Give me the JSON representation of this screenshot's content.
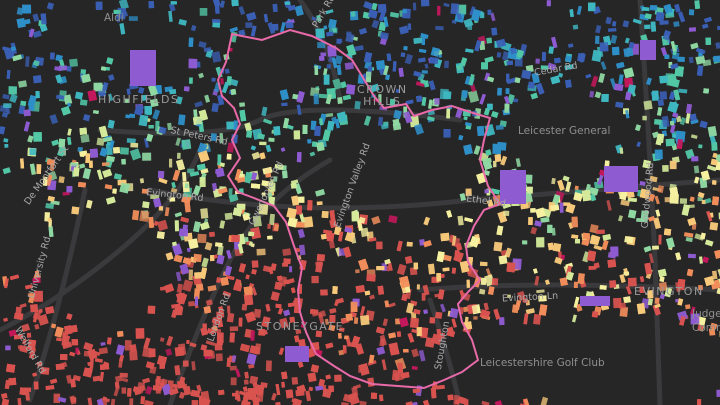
{
  "palette": {
    "background": "#262627",
    "roads": "#3a3a3c",
    "boundary": "#e86aa8",
    "buildings": [
      "#3a5fb4",
      "#2f8fc8",
      "#3fb7c0",
      "#52c7a5",
      "#8fd8a2",
      "#d4ea9a",
      "#f6f1a0",
      "#f7c97a",
      "#f08d5a",
      "#d9534f",
      "#c2185b",
      "#8e5bd1"
    ]
  },
  "labels": {
    "aldi": "Aldi",
    "highfields": "HIGHFIELDS",
    "crown_hills": "CROWN\nHILLS",
    "leicester_general": "Leicester General",
    "evington": "EVINGTON",
    "stoneygate": "STONEYGATE",
    "leicestershire_golf": "Leicestershire Golf Club",
    "st_peters_rd": "St Peters Rd",
    "evington_rd": "Evington Rd",
    "evington_valley_rd": "Evington Valley Rd",
    "evington_ln": "Evington Ln",
    "ethel_rd": "Ethel Rd",
    "goodwood_rd": "Goodwood Rd",
    "gwendolen_rd": "Gwendolen Rd",
    "de_montfort_st": "De Montfort St",
    "university_rd": "University Rd",
    "welford_rd": "Welford Rd",
    "london_rd": "London Rd",
    "stoughton": "Stoughton",
    "park_rd": "Park Rd",
    "belgrave_rd": "Rd",
    "spencefield": "Judge",
    "comm": "Comm",
    "cedar_rd": "Cedar Rd",
    "ethel": "Ethe"
  }
}
